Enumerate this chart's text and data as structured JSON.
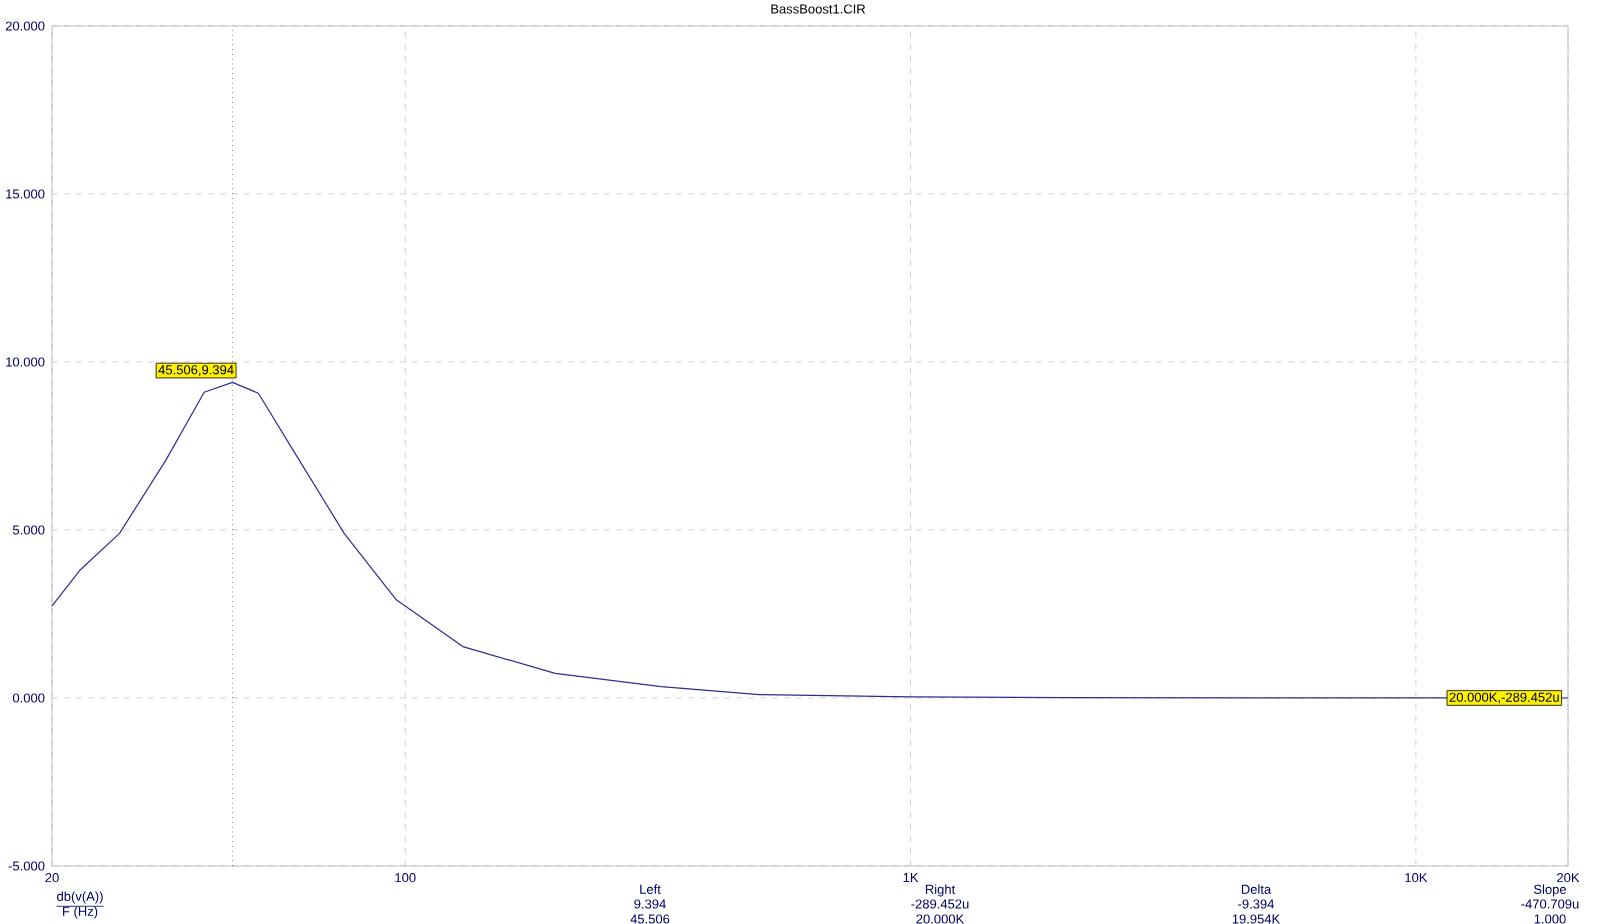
{
  "chart_data": {
    "type": "line",
    "title": "BassBoost1.CIR",
    "xlabel": "F (Hz)",
    "x": [
      20,
      22.7,
      27.2,
      33.6,
      40,
      45.506,
      51.2,
      59.4,
      75.7,
      96,
      130,
      198,
      321,
      502,
      1000,
      2000,
      5000,
      20000
    ],
    "series": [
      {
        "color": "#2e2e8c",
        "values": [
          2.74,
          3.8,
          4.9,
          7.08,
          9.1,
          9.394,
          9.07,
          7.48,
          4.9,
          2.92,
          1.53,
          0.73,
          0.34,
          0.1,
          0.03,
          0.01,
          0.002,
          -0.000289
        ]
      }
    ],
    "xlim": [
      20,
      20000
    ],
    "ylim": [
      -5,
      20
    ],
    "log": "x",
    "grid": true,
    "xticks": [
      20,
      100,
      {
        "value": 1000,
        "label": "1K"
      },
      {
        "value": 10000,
        "label": "10K"
      },
      {
        "value": 20000,
        "label": "20K"
      }
    ],
    "yticks": [
      {
        "value": -5,
        "label": "-5.000"
      },
      {
        "value": 0,
        "label": "0.000"
      },
      {
        "value": 5,
        "label": "5.000"
      },
      {
        "value": 10,
        "label": "10.000"
      },
      {
        "value": 15,
        "label": "15.000"
      },
      {
        "value": 20,
        "label": "20.000"
      }
    ],
    "ref_lines": [
      {
        "axis": "x",
        "value": 45.506,
        "color": "#444444",
        "line_style": "dotted"
      }
    ],
    "annotations": [
      {
        "text": "45.506,9.394",
        "x": 45.506,
        "y": 9.394
      },
      {
        "text": "20.000K,-289.452u",
        "x": 20000,
        "y": -0.000289
      },
      "db(v(A))",
      "Left",
      "9.394",
      "45.506",
      "Right",
      "-289.452u",
      "20.000K",
      "Delta",
      "-9.394",
      "19.954K",
      "Slope",
      "-470.709u",
      "1.000"
    ]
  }
}
